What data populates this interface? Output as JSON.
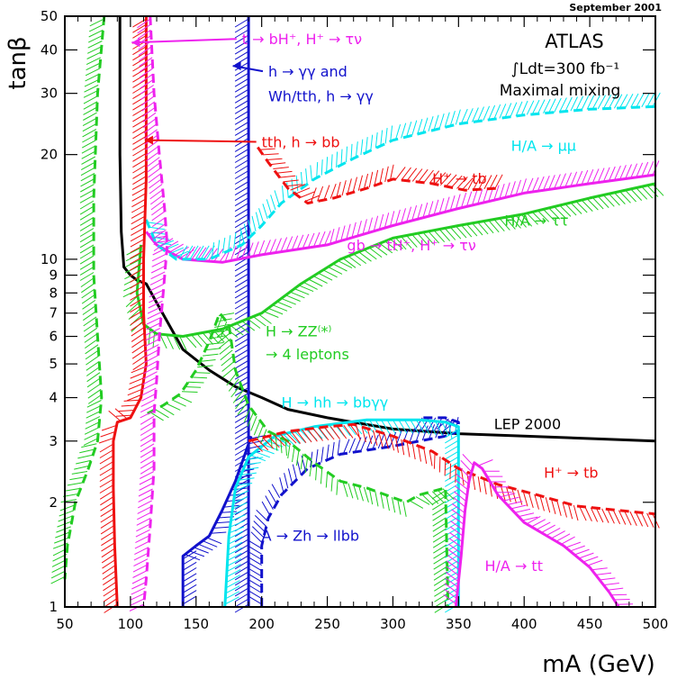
{
  "chart_data": {
    "type": "line",
    "date": "September 2001",
    "experiment": "ATLAS",
    "luminosity": "∫Ldt=300 fb⁻¹",
    "scenario": "Maximal mixing",
    "xlabel": "mA (GeV)",
    "ylabel": "tanβ",
    "xlim": [
      50,
      500
    ],
    "ylim": [
      1,
      50
    ],
    "yscale": "log",
    "x_ticks": [
      50,
      100,
      150,
      200,
      250,
      300,
      350,
      400,
      450,
      500
    ],
    "y_ticks": [
      1,
      2,
      3,
      4,
      5,
      6,
      7,
      8,
      9,
      10,
      20,
      30,
      40,
      50
    ],
    "colors": {
      "green": "#22cc22",
      "red": "#ee1111",
      "magenta": "#ee22ee",
      "blue": "#1111cc",
      "cyan": "#00e5ee",
      "black": "#000000"
    },
    "series": [
      {
        "name": "LEP 2000",
        "color": "black",
        "dashed": false,
        "hatch": false,
        "points": [
          [
            92,
            50
          ],
          [
            92,
            20
          ],
          [
            93,
            12
          ],
          [
            95,
            9.5
          ],
          [
            100,
            9
          ],
          [
            105,
            8.7
          ],
          [
            112,
            8.5
          ],
          [
            120,
            7.5
          ],
          [
            140,
            5.5
          ],
          [
            160,
            4.8
          ],
          [
            180,
            4.3
          ],
          [
            200,
            4.0
          ],
          [
            220,
            3.7
          ],
          [
            250,
            3.5
          ],
          [
            300,
            3.25
          ],
          [
            350,
            3.15
          ],
          [
            400,
            3.1
          ],
          [
            450,
            3.05
          ],
          [
            500,
            3.0
          ]
        ]
      },
      {
        "name": "A→Zh→llbb (solid)",
        "color": "blue",
        "dashed": false,
        "hatch": true,
        "hatchSide": 1,
        "points": [
          [
            140,
            1
          ],
          [
            140,
            1.4
          ],
          [
            150,
            1.5
          ],
          [
            160,
            1.6
          ],
          [
            170,
            1.9
          ],
          [
            180,
            2.3
          ],
          [
            188,
            2.8
          ],
          [
            192,
            3.1
          ]
        ]
      },
      {
        "name": "A→Zh→llbb (dotted)",
        "color": "blue",
        "dashed": true,
        "hatch": true,
        "hatchSide": -1,
        "points": [
          [
            200,
            1
          ],
          [
            200,
            1.5
          ],
          [
            205,
            1.8
          ],
          [
            215,
            2.1
          ],
          [
            235,
            2.5
          ],
          [
            260,
            2.75
          ],
          [
            300,
            2.9
          ],
          [
            320,
            3.0
          ],
          [
            340,
            3.1
          ],
          [
            350,
            3.2
          ],
          [
            350,
            3.4
          ],
          [
            340,
            3.5
          ],
          [
            320,
            3.5
          ]
        ]
      },
      {
        "name": "h→γγ",
        "color": "blue",
        "dashed": false,
        "hatch": true,
        "hatchSide": 1,
        "points": [
          [
            190,
            50
          ],
          [
            190,
            1
          ]
        ]
      },
      {
        "name": "H→hh→bbγγ",
        "color": "cyan",
        "dashed": false,
        "hatch": true,
        "hatchSide": 1,
        "points": [
          [
            172,
            1
          ],
          [
            175,
            1.6
          ],
          [
            180,
            2.2
          ],
          [
            190,
            2.7
          ],
          [
            210,
            3.1
          ],
          [
            240,
            3.3
          ],
          [
            280,
            3.45
          ],
          [
            320,
            3.45
          ],
          [
            340,
            3.4
          ],
          [
            350,
            3.3
          ],
          [
            350,
            1
          ]
        ]
      },
      {
        "name": "H→ZZ*→4 leptons",
        "color": "green",
        "dashed": true,
        "hatch": true,
        "hatchSide": 1,
        "points": [
          [
            113,
            3.6
          ],
          [
            125,
            3.8
          ],
          [
            138,
            4.1
          ],
          [
            150,
            4.8
          ],
          [
            160,
            5.8
          ],
          [
            168,
            7.0
          ],
          [
            175,
            6.5
          ],
          [
            180,
            4.8
          ],
          [
            190,
            3.8
          ],
          [
            205,
            3.2
          ],
          [
            220,
            3.0
          ],
          [
            240,
            2.6
          ],
          [
            260,
            2.3
          ],
          [
            280,
            2.2
          ],
          [
            310,
            2.0
          ],
          [
            320,
            2.1
          ],
          [
            340,
            2.2
          ],
          [
            342,
            1
          ]
        ]
      },
      {
        "name": "H/A→ττ",
        "color": "green",
        "dashed": false,
        "hatch": true,
        "hatchSide": 1,
        "points": [
          [
            108,
            11
          ],
          [
            105,
            8
          ],
          [
            110,
            6.5
          ],
          [
            120,
            6.1
          ],
          [
            140,
            6.0
          ],
          [
            170,
            6.3
          ],
          [
            200,
            7.0
          ],
          [
            230,
            8.5
          ],
          [
            260,
            10
          ],
          [
            300,
            11.5
          ],
          [
            350,
            12.5
          ],
          [
            400,
            13.5
          ],
          [
            450,
            15
          ],
          [
            500,
            16.5
          ]
        ]
      },
      {
        "name": "gb→tH+, H+→τν",
        "color": "magenta",
        "dashed": false,
        "hatch": true,
        "hatchSide": -1,
        "points": [
          [
            112,
            12
          ],
          [
            120,
            11
          ],
          [
            140,
            10
          ],
          [
            170,
            9.8
          ],
          [
            200,
            10.3
          ],
          [
            250,
            11
          ],
          [
            300,
            12.5
          ],
          [
            350,
            14
          ],
          [
            400,
            15.5
          ],
          [
            450,
            16.5
          ],
          [
            500,
            17.5
          ]
        ]
      },
      {
        "name": "H/A→μμ",
        "color": "cyan",
        "dashed": true,
        "hatch": true,
        "hatchSide": -1,
        "points": [
          [
            112,
            13
          ],
          [
            120,
            11
          ],
          [
            135,
            10
          ],
          [
            160,
            10
          ],
          [
            185,
            11
          ],
          [
            200,
            12.5
          ],
          [
            215,
            14.5
          ],
          [
            240,
            17
          ],
          [
            270,
            19.5
          ],
          [
            300,
            22
          ],
          [
            350,
            24.5
          ],
          [
            400,
            26
          ],
          [
            450,
            27
          ],
          [
            500,
            27.5
          ]
        ]
      },
      {
        "name": "H+→tb (upper)",
        "color": "red",
        "dashed": true,
        "hatch": true,
        "hatchSide": -1,
        "points": [
          [
            197,
            21
          ],
          [
            205,
            19
          ],
          [
            220,
            16
          ],
          [
            235,
            14.5
          ],
          [
            255,
            15
          ],
          [
            280,
            16
          ],
          [
            300,
            17
          ],
          [
            330,
            16.5
          ],
          [
            355,
            15.8
          ],
          [
            380,
            16
          ]
        ]
      },
      {
        "name": "H+→tb (lower)",
        "color": "red",
        "dashed": true,
        "hatch": true,
        "hatchSide": 1,
        "points": [
          [
            190,
            3.0
          ],
          [
            220,
            3.2
          ],
          [
            250,
            3.3
          ],
          [
            270,
            3.35
          ],
          [
            300,
            3.1
          ],
          [
            330,
            2.8
          ],
          [
            350,
            2.5
          ],
          [
            380,
            2.25
          ],
          [
            410,
            2.1
          ],
          [
            440,
            1.95
          ],
          [
            470,
            1.9
          ],
          [
            500,
            1.85
          ]
        ]
      },
      {
        "name": "tth, h→bb",
        "color": "red",
        "dashed": false,
        "hatch": true,
        "hatchSide": 1,
        "points": [
          [
            112,
            50
          ],
          [
            112,
            30
          ],
          [
            112,
            17
          ],
          [
            110,
            10
          ],
          [
            110,
            7
          ],
          [
            112,
            5
          ],
          [
            108,
            4
          ],
          [
            100,
            3.5
          ],
          [
            90,
            3.4
          ],
          [
            87,
            3.0
          ],
          [
            87,
            2.2
          ],
          [
            88,
            1.5
          ],
          [
            90,
            1
          ]
        ]
      },
      {
        "name": "t→bH+, H+→τν",
        "color": "magenta",
        "dashed": true,
        "hatch": true,
        "hatchSide": 1,
        "points": [
          [
            115,
            50
          ],
          [
            118,
            30
          ],
          [
            122,
            20
          ],
          [
            126,
            14
          ],
          [
            128,
            11
          ],
          [
            125,
            8
          ],
          [
            122,
            6
          ],
          [
            120,
            4.5
          ],
          [
            118,
            3.6
          ],
          [
            118,
            2.5
          ],
          [
            115,
            1.7
          ],
          [
            112,
            1.2
          ],
          [
            110,
            1
          ]
        ]
      },
      {
        "name": "H/A→tt",
        "color": "magenta",
        "dashed": false,
        "hatch": true,
        "hatchSide": -1,
        "points": [
          [
            348,
            1
          ],
          [
            352,
            1.4
          ],
          [
            355,
            1.9
          ],
          [
            358,
            2.3
          ],
          [
            362,
            2.6
          ],
          [
            368,
            2.5
          ],
          [
            380,
            2.1
          ],
          [
            400,
            1.75
          ],
          [
            430,
            1.5
          ],
          [
            450,
            1.3
          ],
          [
            465,
            1.1
          ],
          [
            472,
            1
          ]
        ]
      },
      {
        "name": "Green dashed bound (low)",
        "color": "green",
        "dashed": true,
        "hatch": true,
        "hatchSide": 1,
        "points": [
          [
            80,
            50
          ],
          [
            75,
            30
          ],
          [
            72,
            15
          ],
          [
            72,
            9
          ],
          [
            75,
            6
          ],
          [
            78,
            4
          ],
          [
            75,
            3
          ],
          [
            68,
            2.5
          ],
          [
            58,
            2.0
          ],
          [
            52,
            1.5
          ],
          [
            50,
            1.2
          ]
        ]
      }
    ],
    "annotations": [
      {
        "text": "t → bH⁺, H⁺ → τν",
        "x": 185,
        "y": 41.5,
        "color": "magenta",
        "arrowTo": [
          101,
          42
        ]
      },
      {
        "text": "h → γγ and",
        "x": 205,
        "y": 33.5,
        "color": "blue",
        "arrowTo": [
          178,
          36
        ]
      },
      {
        "text": "Wh/tth, h → γγ",
        "x": 205,
        "y": 28.5,
        "color": "blue"
      },
      {
        "text": "tth, h → bb",
        "x": 200,
        "y": 21,
        "color": "red",
        "arrowTo": [
          111,
          22
        ]
      },
      {
        "text": "H/A → μμ",
        "x": 390,
        "y": 20.5,
        "color": "cyan"
      },
      {
        "text": "H⁺ → tb",
        "x": 330,
        "y": 16.5,
        "color": "red"
      },
      {
        "text": "H/A → ττ",
        "x": 385,
        "y": 12.5,
        "color": "green"
      },
      {
        "text": "gb → tH⁺, H⁺ → τν",
        "x": 265,
        "y": 10.6,
        "color": "magenta"
      },
      {
        "text": "H → ZZ⁽*⁾",
        "x": 203,
        "y": 6.0,
        "color": "green"
      },
      {
        "text": "→ 4 leptons",
        "x": 203,
        "y": 5.15,
        "color": "green"
      },
      {
        "text": "H → hh → bbγγ",
        "x": 215,
        "y": 3.75,
        "color": "cyan"
      },
      {
        "text": "LEP 2000",
        "x": 377,
        "y": 3.25,
        "color": "black"
      },
      {
        "text": "H⁺ → tb",
        "x": 415,
        "y": 2.35,
        "color": "red"
      },
      {
        "text": "A → Zh → llbb",
        "x": 200,
        "y": 1.55,
        "color": "blue"
      },
      {
        "text": "H/A → tt",
        "x": 370,
        "y": 1.27,
        "color": "magenta"
      }
    ]
  }
}
